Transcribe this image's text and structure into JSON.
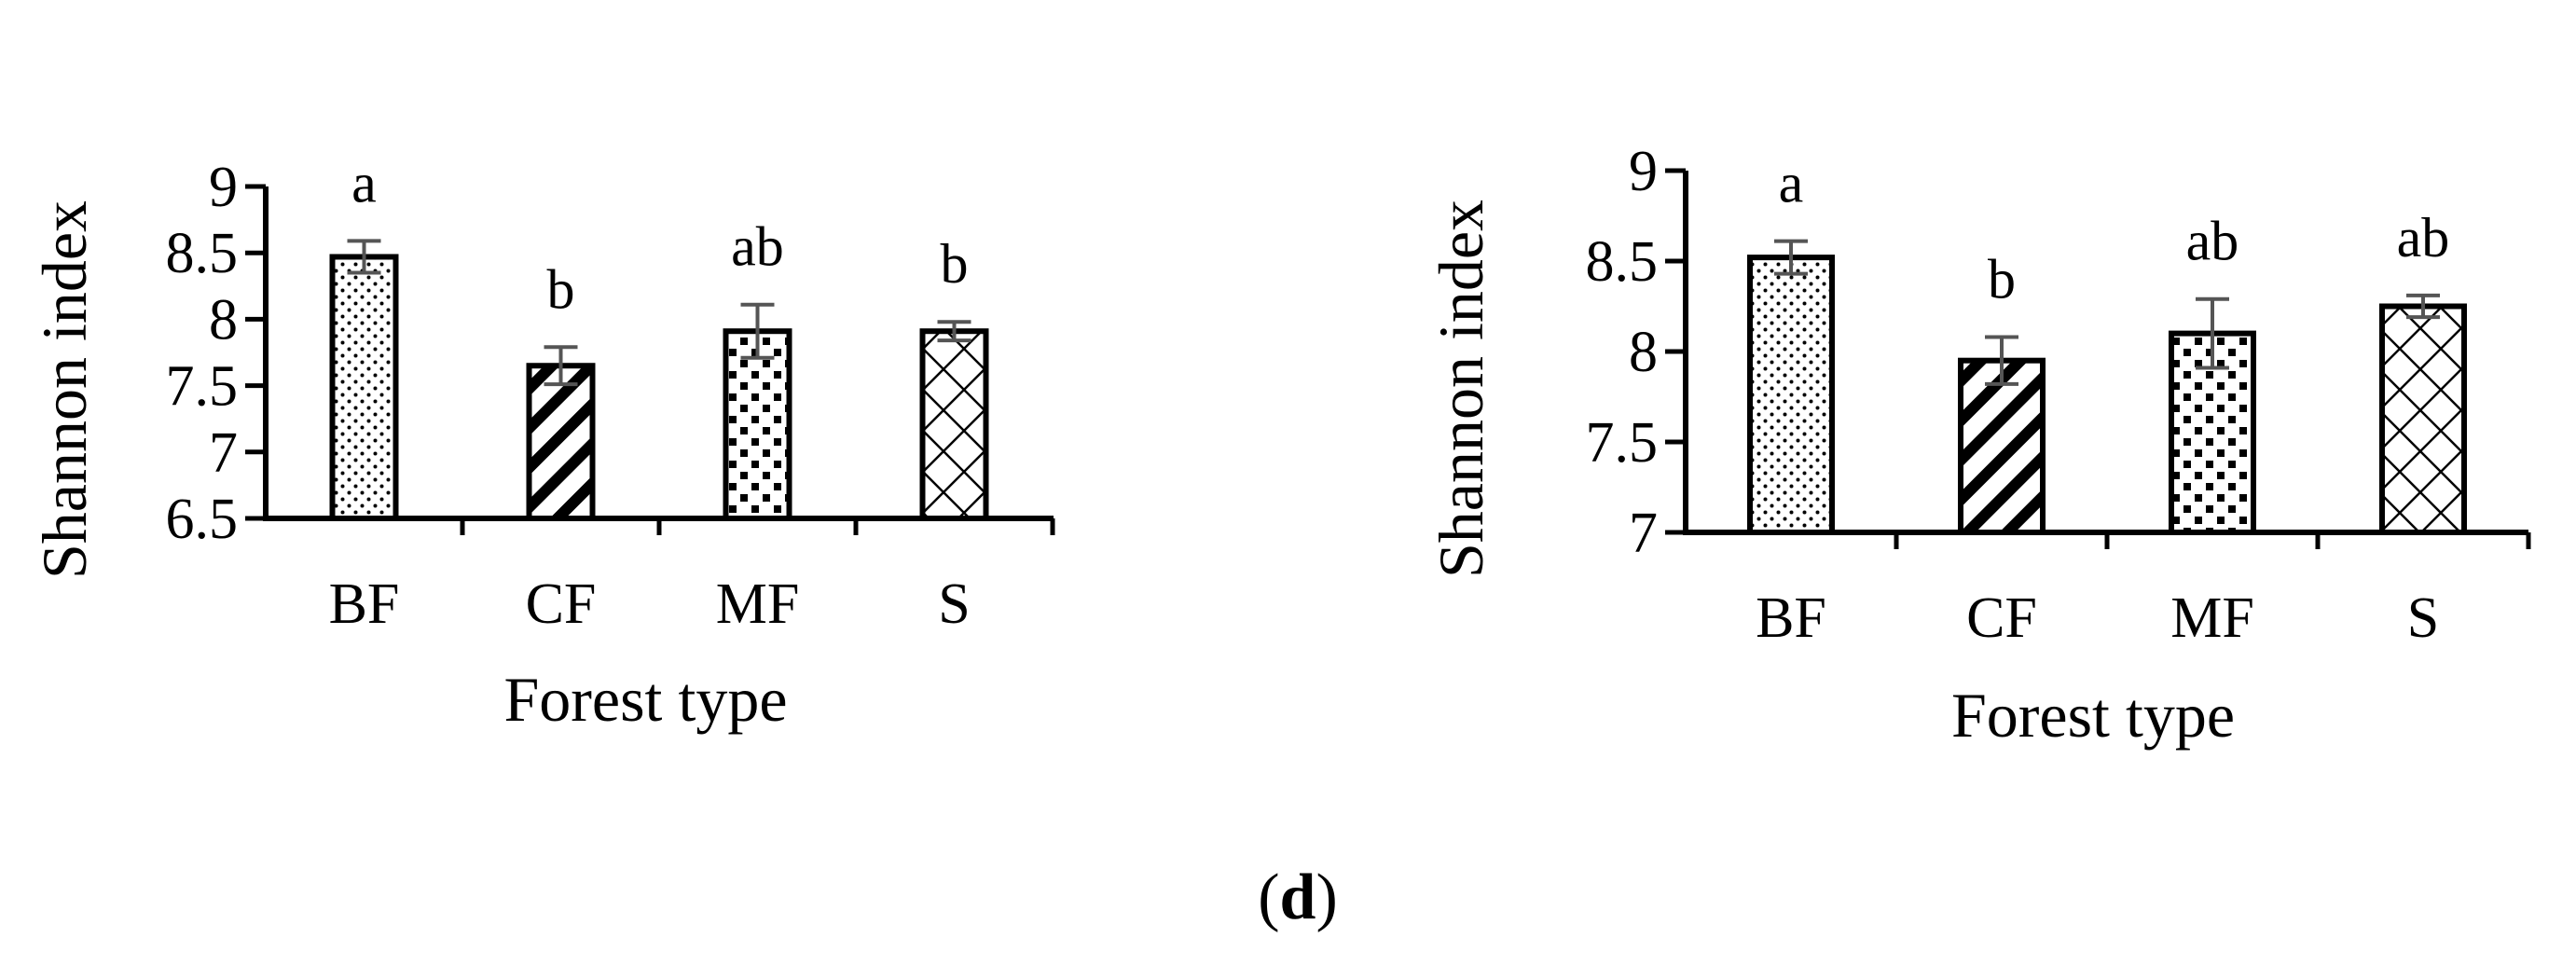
{
  "panel_label": {
    "open": "(",
    "letter": "d",
    "close": ")"
  },
  "chart_data": [
    {
      "type": "bar",
      "categories": [
        "BF",
        "CF",
        "MF",
        "S"
      ],
      "values": [
        8.47,
        7.65,
        7.91,
        7.91
      ],
      "error": [
        0.12,
        0.14,
        0.2,
        0.07
      ],
      "significance": [
        "a",
        "b",
        "ab",
        "b"
      ],
      "patterns": [
        "dots",
        "diagonal-stripes",
        "checker-dots",
        "crosshatch"
      ],
      "title": "",
      "xlabel": "Forest type",
      "ylabel": "Shannon index",
      "ylim": [
        6.5,
        9
      ],
      "yticks": [
        6.5,
        7,
        7.5,
        8,
        8.5,
        9
      ],
      "ytick_labels": [
        "6.5",
        "7",
        "7.5",
        "8",
        "8.5",
        "9"
      ],
      "grid": false,
      "bar_color": "#ffffff",
      "edge_color": "#000000",
      "errorbar_color": "#555555"
    },
    {
      "type": "bar",
      "categories": [
        "BF",
        "CF",
        "MF",
        "S"
      ],
      "values": [
        8.52,
        7.95,
        8.1,
        8.25
      ],
      "error": [
        0.09,
        0.13,
        0.19,
        0.06
      ],
      "significance": [
        "a",
        "b",
        "ab",
        "ab"
      ],
      "patterns": [
        "dots",
        "diagonal-stripes",
        "checker-dots",
        "crosshatch"
      ],
      "title": "",
      "xlabel": "Forest type",
      "ylabel": "Shannon index",
      "ylim": [
        7,
        9
      ],
      "yticks": [
        7,
        7.5,
        8,
        8.5,
        9
      ],
      "ytick_labels": [
        "7",
        "7.5",
        "8",
        "8.5",
        "9"
      ],
      "grid": false,
      "bar_color": "#ffffff",
      "edge_color": "#000000",
      "errorbar_color": "#555555"
    }
  ]
}
